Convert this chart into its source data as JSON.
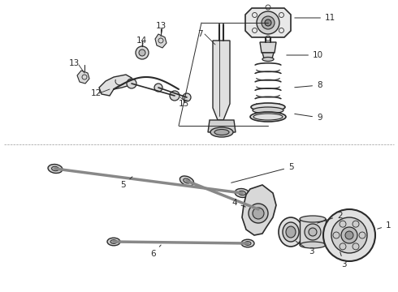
{
  "bg_color": "#ffffff",
  "lc": "#2a2a2a",
  "figsize": [
    4.9,
    3.6
  ],
  "dpi": 100
}
